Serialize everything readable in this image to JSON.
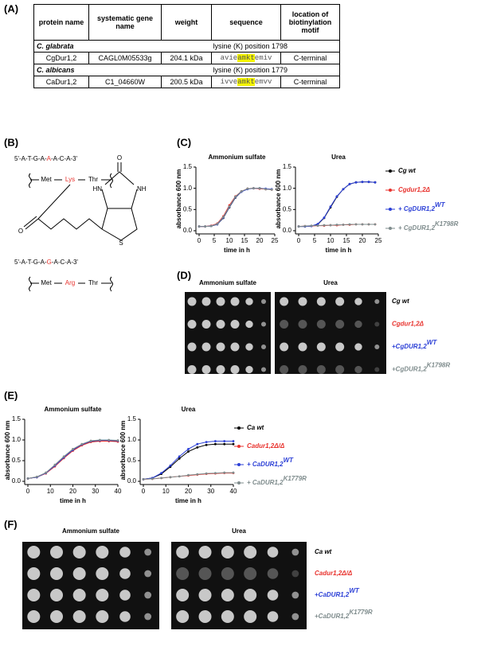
{
  "panels": [
    "(A)",
    "(B)",
    "(C)",
    "(D)",
    "(E)",
    "(F)"
  ],
  "table": {
    "header": [
      "protein name",
      "systematic gene name",
      "weight",
      "sequence",
      "location of biotinylation motif"
    ],
    "groups": [
      {
        "organism": "C. glabrata",
        "note": "lysine (K) position 1798",
        "row": {
          "protein": "CgDur1,2",
          "gene": "CAGL0M05533g",
          "weight": "204.1 kDa",
          "sequence": [
            "avie",
            "amkt",
            "emiv"
          ],
          "location": "C-terminal"
        }
      },
      {
        "organism": "C. albicans",
        "note": "lysine (K) position 1779",
        "row": {
          "protein": "CaDur1,2",
          "gene": "C1_04660W",
          "weight": "200.5 kDa",
          "sequence": [
            "ivve",
            "amkt",
            "emvv"
          ],
          "location": "C-terminal"
        }
      }
    ]
  },
  "diagram": {
    "seq1": [
      "5'-A-T-G-A-",
      "A",
      "-A-C-A-3'"
    ],
    "peptide1": [
      "Met",
      "Lys",
      "Thr"
    ],
    "biotin_atoms": [
      "O",
      "HN",
      "NH",
      "S",
      "O"
    ],
    "seq2": [
      "5'-A-T-G-A-",
      "G",
      "-A-C-A-3'"
    ],
    "peptide2": [
      "Met",
      "Arg",
      "Thr"
    ]
  },
  "chart_data": [
    {
      "type": "line",
      "title": "Ammonium sulfate",
      "x_label": "time in h",
      "y_label": "absorbance 600 nm",
      "x": [
        0,
        2,
        4,
        6,
        8,
        10,
        12,
        14,
        16,
        18,
        20,
        22,
        24
      ],
      "xlim": [
        0,
        25
      ],
      "xticks": [
        0,
        5,
        10,
        15,
        20,
        25
      ],
      "ylim": [
        0,
        1.5
      ],
      "yticks": [
        {
          "value": 0,
          "label": "0.0"
        },
        0.5,
        {
          "value": 1,
          "label": "1.0"
        },
        1.5
      ],
      "series": [
        {
          "color": "#000000",
          "values": [
            0.1,
            0.1,
            0.11,
            0.15,
            0.3,
            0.55,
            0.78,
            0.92,
            0.99,
            1.0,
            1.0,
            0.98,
            0.97
          ]
        },
        {
          "color": "#e8322d",
          "values": [
            0.1,
            0.1,
            0.12,
            0.17,
            0.34,
            0.6,
            0.81,
            0.93,
            0.99,
            1.0,
            0.99,
            0.98,
            0.97
          ]
        },
        {
          "color": "#2b3fd6",
          "values": [
            0.1,
            0.1,
            0.11,
            0.15,
            0.31,
            0.56,
            0.79,
            0.92,
            0.98,
            1.0,
            1.0,
            0.99,
            0.98
          ]
        },
        {
          "color": "#7f8c8d",
          "values": [
            0.1,
            0.1,
            0.11,
            0.16,
            0.32,
            0.57,
            0.8,
            0.93,
            0.99,
            1.0,
            1.0,
            0.98,
            0.97
          ]
        }
      ]
    },
    {
      "type": "line",
      "title": "Urea",
      "x_label": "time in h",
      "y_label": "absorbance 600 nm",
      "x": [
        0,
        2,
        4,
        6,
        8,
        10,
        12,
        14,
        16,
        18,
        20,
        22,
        24
      ],
      "xlim": [
        0,
        25
      ],
      "xticks": [
        0,
        5,
        10,
        15,
        20,
        25
      ],
      "ylim": [
        0,
        1.5
      ],
      "yticks": [
        {
          "value": 0,
          "label": "0.0"
        },
        0.5,
        {
          "value": 1,
          "label": "1.0"
        },
        1.5
      ],
      "legend_position": "outside-right",
      "series": [
        {
          "name": "Cg wt",
          "name_sup": "",
          "color": "#000000",
          "values": [
            0.1,
            0.1,
            0.11,
            0.15,
            0.3,
            0.55,
            0.8,
            0.98,
            1.1,
            1.14,
            1.15,
            1.15,
            1.14
          ]
        },
        {
          "name": "Cgdur1,2Δ",
          "name_sup": "",
          "color": "#e8322d",
          "values": [
            0.1,
            0.11,
            0.11,
            0.12,
            0.12,
            0.13,
            0.13,
            0.14,
            0.14,
            0.15,
            0.15,
            0.15,
            0.15
          ]
        },
        {
          "name": "+ CgDUR1,2",
          "name_sup": "WT",
          "color": "#2b3fd6",
          "values": [
            0.1,
            0.1,
            0.11,
            0.16,
            0.31,
            0.57,
            0.81,
            0.98,
            1.1,
            1.14,
            1.15,
            1.15,
            1.14
          ]
        },
        {
          "name": "+ CgDUR1,2",
          "name_sup": "K1798R",
          "color": "#7f8c8d",
          "values": [
            0.1,
            0.11,
            0.12,
            0.12,
            0.13,
            0.13,
            0.14,
            0.14,
            0.15,
            0.15,
            0.15,
            0.15,
            0.15
          ]
        }
      ]
    },
    {
      "type": "line",
      "title": "Ammonium sulfate",
      "x_label": "time in h",
      "y_label": "absorbance 600 nm",
      "x": [
        0,
        4,
        8,
        12,
        16,
        20,
        24,
        28,
        32,
        36,
        40
      ],
      "xlim": [
        0,
        40
      ],
      "xticks": [
        0,
        10,
        20,
        30,
        40
      ],
      "ylim": [
        0,
        1.5
      ],
      "yticks": [
        {
          "value": 0,
          "label": "0.0"
        },
        0.5,
        {
          "value": 1,
          "label": "1.0"
        },
        1.5
      ],
      "series": [
        {
          "color": "#000000",
          "values": [
            0.07,
            0.1,
            0.2,
            0.38,
            0.58,
            0.75,
            0.88,
            0.96,
            0.98,
            0.98,
            0.97
          ]
        },
        {
          "color": "#e8322d",
          "values": [
            0.07,
            0.1,
            0.19,
            0.36,
            0.56,
            0.74,
            0.87,
            0.95,
            0.97,
            0.97,
            0.96
          ]
        },
        {
          "color": "#2b3fd6",
          "values": [
            0.07,
            0.1,
            0.2,
            0.38,
            0.58,
            0.76,
            0.89,
            0.97,
            0.99,
            0.99,
            0.98
          ]
        },
        {
          "color": "#7f8c8d",
          "values": [
            0.07,
            0.11,
            0.21,
            0.4,
            0.6,
            0.78,
            0.9,
            0.98,
            1.0,
            1.0,
            0.99
          ]
        }
      ]
    },
    {
      "type": "line",
      "title": "Urea",
      "x_label": "time in h",
      "y_label": "absorbance 600 nm",
      "x": [
        0,
        4,
        8,
        12,
        16,
        20,
        24,
        28,
        32,
        36,
        40
      ],
      "xlim": [
        0,
        40
      ],
      "xticks": [
        0,
        10,
        20,
        30,
        40
      ],
      "ylim": [
        0,
        1.5
      ],
      "yticks": [
        {
          "value": 0,
          "label": "0.0"
        },
        0.5,
        {
          "value": 1,
          "label": "1.0"
        },
        1.5
      ],
      "legend_position": "outside-right",
      "series": [
        {
          "name": "Ca wt",
          "name_sup": "",
          "color": "#000000",
          "values": [
            0.05,
            0.08,
            0.18,
            0.35,
            0.55,
            0.72,
            0.82,
            0.88,
            0.9,
            0.9,
            0.9
          ]
        },
        {
          "name": "Cadur1,2Δ/Δ",
          "name_sup": "",
          "color": "#e8322d",
          "values": [
            0.05,
            0.06,
            0.08,
            0.1,
            0.12,
            0.14,
            0.16,
            0.18,
            0.19,
            0.2,
            0.2
          ]
        },
        {
          "name": "+ CaDUR1,2",
          "name_sup": "WT",
          "color": "#2b3fd6",
          "values": [
            0.05,
            0.08,
            0.2,
            0.38,
            0.6,
            0.78,
            0.9,
            0.95,
            0.97,
            0.97,
            0.97
          ]
        },
        {
          "name": "+ CaDUR1,2",
          "name_sup": "K1779R",
          "color": "#7f8c8d",
          "values": [
            0.05,
            0.06,
            0.08,
            0.1,
            0.12,
            0.15,
            0.17,
            0.19,
            0.2,
            0.21,
            0.21
          ]
        }
      ]
    }
  ],
  "spot_assays": [
    {
      "conditions": [
        "Ammonium sulfate",
        "Urea"
      ],
      "strains": [
        {
          "name": "Cg wt",
          "sup": "",
          "color": "#000000"
        },
        {
          "name": "Cgdur1,2Δ",
          "sup": "",
          "color": "#e8322d"
        },
        {
          "name": "+CgDUR1,2",
          "sup": "WT",
          "color": "#2b3fd6"
        },
        {
          "name": "+CgDUR1,2",
          "sup": "K1798R",
          "color": "#7f8c8d"
        }
      ]
    },
    {
      "conditions": [
        "Ammonium sulfate",
        "Urea"
      ],
      "strains": [
        {
          "name": "Ca wt",
          "sup": "",
          "color": "#000000"
        },
        {
          "name": "Cadur1,2Δ/Δ",
          "sup": "",
          "color": "#e8322d"
        },
        {
          "name": "+CaDUR1,2",
          "sup": "WT",
          "color": "#2b3fd6"
        },
        {
          "name": "+CaDUR1,2",
          "sup": "K1779R",
          "color": "#7f8c8d"
        }
      ]
    }
  ]
}
